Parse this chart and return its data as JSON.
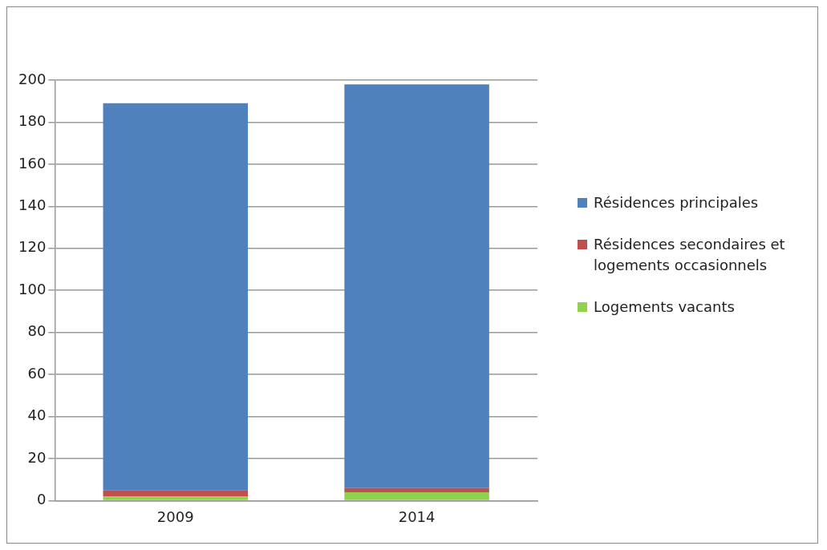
{
  "chart_data": {
    "type": "bar",
    "stacked": true,
    "categories": [
      "2009",
      "2014"
    ],
    "series": [
      {
        "name": "Logements vacants",
        "color": "#92d050",
        "values": [
          2,
          4
        ]
      },
      {
        "name": "Résidences secondaires et logements occasionnels",
        "color": "#c0504d",
        "values": [
          3,
          2
        ]
      },
      {
        "name": "Résidences principales",
        "color": "#4f81bd",
        "values": [
          184,
          192
        ]
      }
    ],
    "ylim": [
      0,
      200
    ],
    "yticks": [
      0,
      20,
      40,
      60,
      80,
      100,
      120,
      140,
      160,
      180,
      200
    ],
    "grid": "y",
    "legend": "right"
  }
}
